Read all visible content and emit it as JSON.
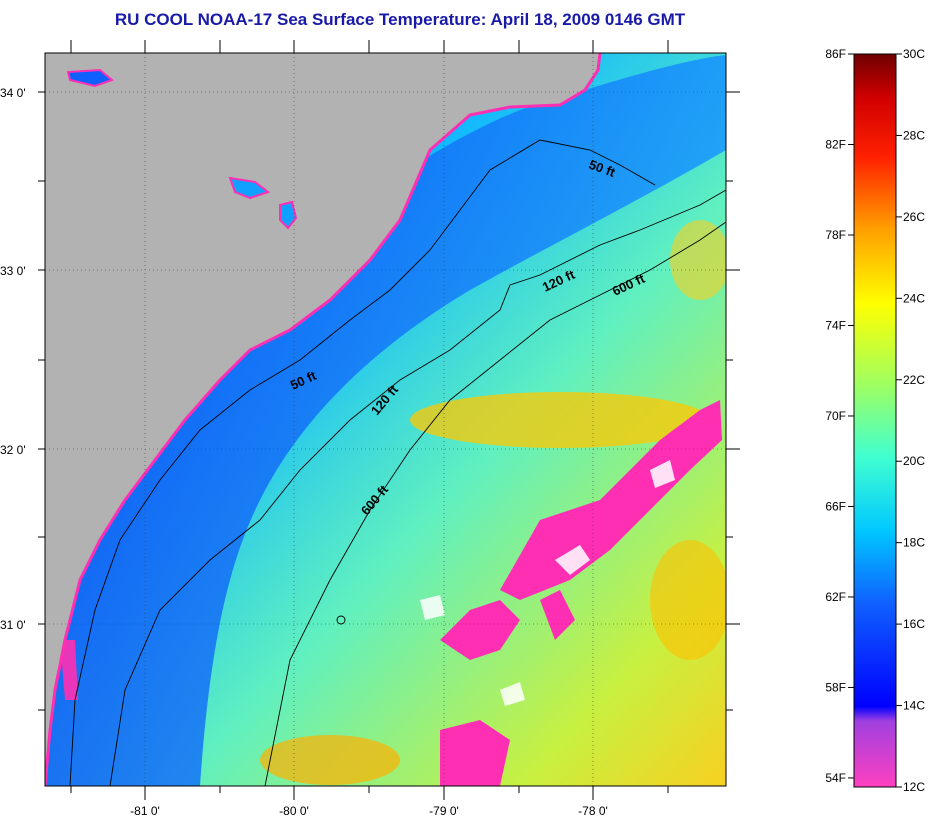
{
  "title": "RU COOL  NOAA-17  Sea Surface Temperature:  April 18, 2009 0146 GMT",
  "map": {
    "lat_labels": [
      "34 0'",
      "33 0'",
      "32 0'",
      "31 0'"
    ],
    "lon_labels": [
      "-81 0'",
      "-80 0'",
      "-79 0'",
      "-78 0'"
    ],
    "contour_labels": [
      "50 ft",
      "120 ft",
      "600 ft",
      "50 ft",
      "120 ft",
      "600 ft"
    ],
    "colors": {
      "land": "#b2b2b2",
      "cloud": "#ff2fb4"
    }
  },
  "colorbar": {
    "fahrenheit_labels": [
      "86F",
      "82F",
      "78F",
      "74F",
      "70F",
      "66F",
      "62F",
      "58F",
      "54F"
    ],
    "celsius_labels": [
      "30C",
      "28C",
      "26C",
      "24C",
      "22C",
      "20C",
      "18C",
      "16C",
      "14C",
      "12C"
    ],
    "range_celsius": [
      12,
      30
    ]
  }
}
